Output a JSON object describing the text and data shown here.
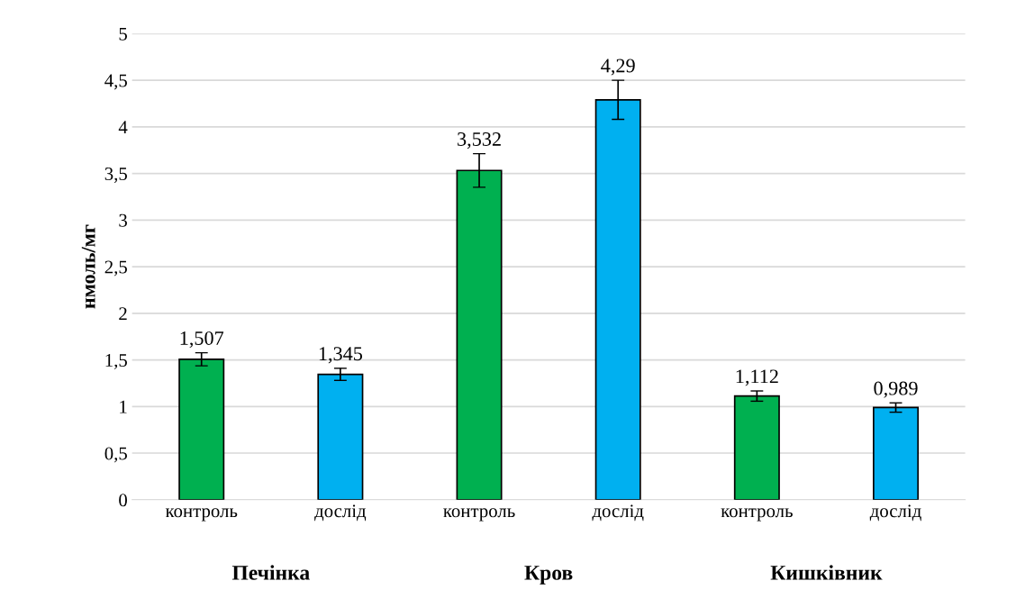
{
  "chart_data": {
    "type": "bar",
    "ylabel": "нмоль/мг",
    "categories": [
      "контроль",
      "дослід",
      "контроль",
      "дослід",
      "контроль",
      "дослід"
    ],
    "series": [
      {
        "values": [
          1.507,
          1.345,
          3.532,
          4.29,
          1.112,
          0.989
        ],
        "colors": [
          "#00b050",
          "#00b0f0",
          "#00b050",
          "#00b0f0",
          "#00b050",
          "#00b0f0"
        ],
        "errors": [
          0.07,
          0.065,
          0.18,
          0.21,
          0.055,
          0.05
        ],
        "value_labels": [
          "1,507",
          "1,345",
          "3,532",
          "4,29",
          "1,112",
          "0,989"
        ]
      }
    ],
    "annotations": [
      "Печінка",
      "Кров",
      "Кишківник"
    ],
    "ylim": [
      0,
      5
    ],
    "yticks": [
      0,
      {
        "value": 0.5,
        "label": "0,5"
      },
      1,
      {
        "value": 1.5,
        "label": "1,5"
      },
      2,
      {
        "value": 2.5,
        "label": "2,5"
      },
      3,
      {
        "value": 3.5,
        "label": "3,5"
      },
      4,
      {
        "value": 4.5,
        "label": "4,5"
      },
      5
    ],
    "grid": "y",
    "legend": false
  }
}
